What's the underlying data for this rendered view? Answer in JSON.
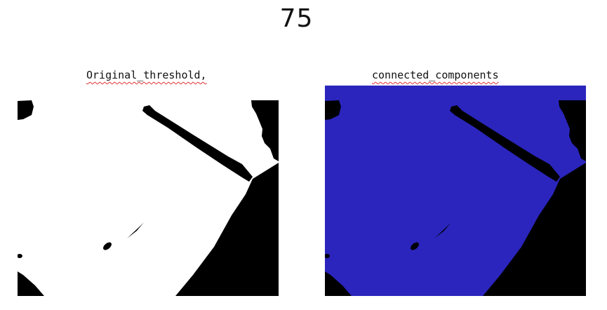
{
  "figure": {
    "title": "75"
  },
  "panels": [
    {
      "label": "Original_threshold,",
      "foreground_color": "#000000",
      "background_color": "#ffffff"
    },
    {
      "label": "connected_components",
      "foreground_color": "#000000",
      "background_color": "#2b25be"
    }
  ]
}
